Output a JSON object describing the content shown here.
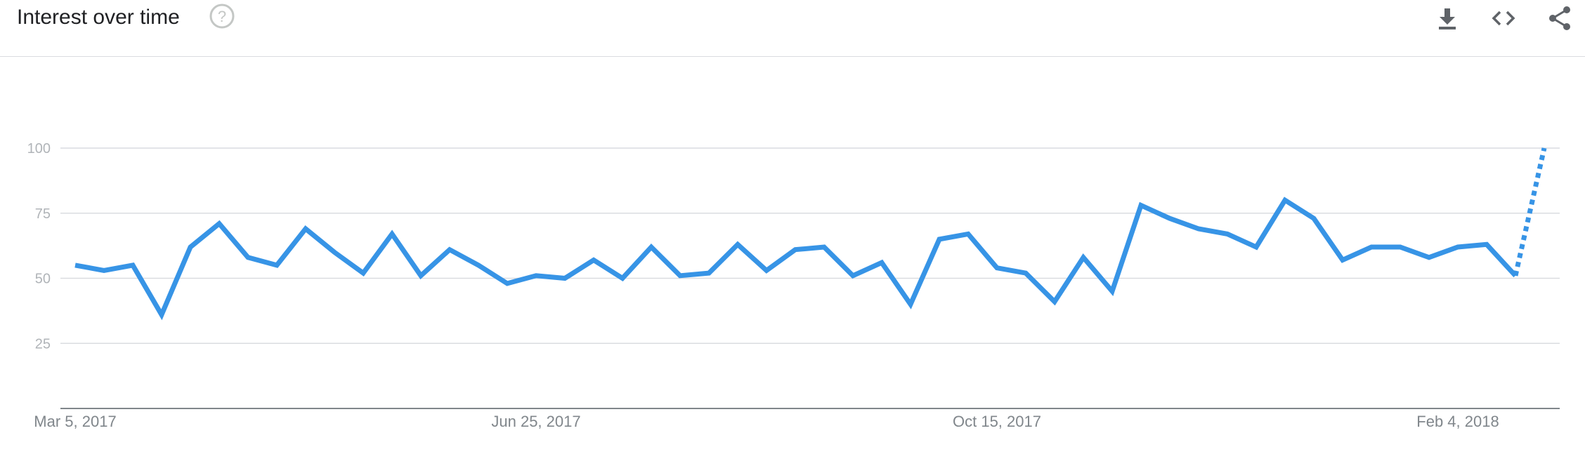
{
  "header": {
    "title": "Interest over time",
    "help_icon": "help-circle-icon",
    "actions": [
      {
        "name": "download-icon",
        "icon": "download-icon"
      },
      {
        "name": "embed-icon",
        "icon": "code-brackets-icon"
      },
      {
        "name": "share-icon",
        "icon": "share-icon"
      }
    ]
  },
  "colors": {
    "line": "#3794e6",
    "grid": "#dadce0",
    "axis": "#80868b",
    "header_border": "#dadce0"
  },
  "chart_data": {
    "type": "line",
    "title": "",
    "xlabel": "",
    "ylabel": "",
    "ylim": [
      0,
      100
    ],
    "yticks": [
      25,
      50,
      75,
      100
    ],
    "grid": true,
    "x_tick_labels": [
      "Mar 5, 2017",
      "Jun 25, 2017",
      "Oct 15, 2017",
      "Feb 4, 2018"
    ],
    "x_tick_index": [
      0,
      16,
      32,
      48
    ],
    "series": [
      {
        "values": [
          55,
          53,
          55,
          36,
          62,
          71,
          58,
          55,
          69,
          60,
          52,
          67,
          51,
          61,
          55,
          48,
          51,
          50,
          57,
          50,
          62,
          51,
          52,
          63,
          53,
          61,
          62,
          51,
          56,
          40,
          65,
          67,
          54,
          52,
          41,
          58,
          45,
          78,
          73,
          69,
          67,
          62,
          80,
          73,
          57,
          62,
          62,
          58,
          62,
          63,
          51,
          100
        ],
        "partial_from_index": 50
      }
    ]
  }
}
